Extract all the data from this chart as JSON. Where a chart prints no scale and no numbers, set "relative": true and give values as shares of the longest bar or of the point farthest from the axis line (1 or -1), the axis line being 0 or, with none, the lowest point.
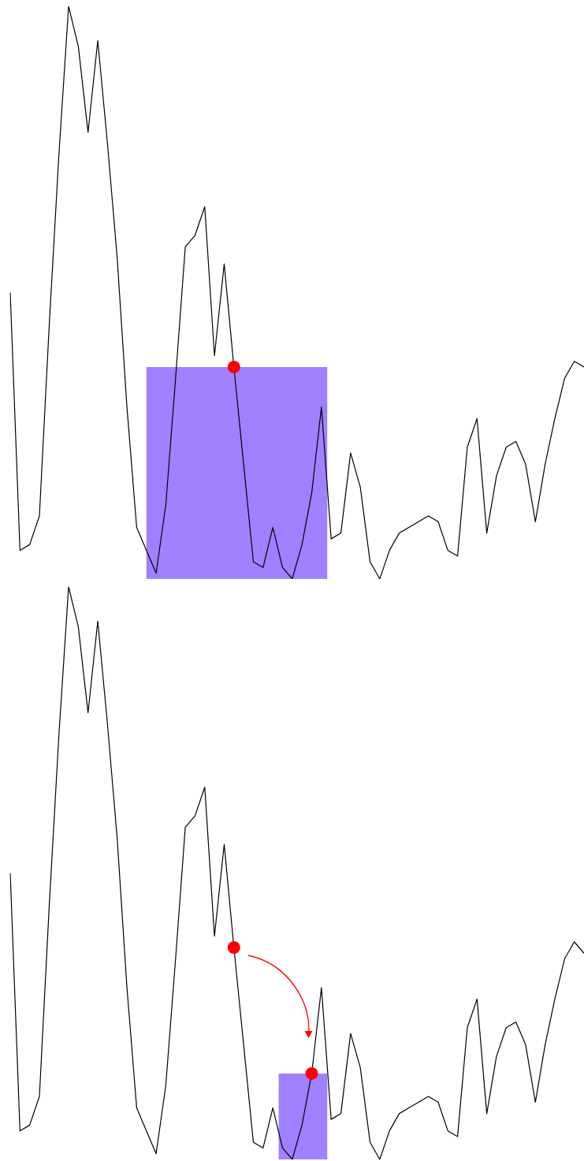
{
  "chart_data": [
    {
      "type": "line",
      "relative": true,
      "legend": false,
      "categories": [
        null,
        null,
        null,
        null,
        null,
        null,
        null,
        null,
        null,
        null,
        null,
        null,
        null,
        null,
        null,
        null,
        null,
        null,
        null,
        null,
        null,
        null,
        null,
        null,
        null,
        null,
        null,
        null,
        null,
        null,
        null,
        null,
        null,
        null,
        null,
        null,
        null,
        null,
        null,
        null,
        null,
        null,
        null,
        null,
        null,
        null,
        null,
        null,
        null,
        null,
        null,
        null,
        null,
        null,
        null,
        null,
        null,
        null,
        null,
        null
      ],
      "series": [
        {
          "color": "#000000",
          "values": [
            0.5,
            0.05,
            0.06,
            0.11,
            0.44,
            0.74,
            1.0,
            0.93,
            0.78,
            0.94,
            0.76,
            0.56,
            0.3,
            0.09,
            0.05,
            0.01,
            0.13,
            0.35,
            0.58,
            0.6,
            0.65,
            0.39,
            0.55,
            0.37,
            0.2,
            0.03,
            0.02,
            0.09,
            0.02,
            0,
            0.06,
            0.15,
            0.3,
            0.07,
            0.08,
            0.22,
            0.16,
            0.03,
            0,
            0.05,
            0.08,
            0.09,
            0.1,
            0.11,
            0.1,
            0.05,
            0.04,
            0.23,
            0.28,
            0.08,
            0.18,
            0.23,
            0.24,
            0.2,
            0.1,
            0.2,
            0.28,
            0.35,
            0.38,
            0.37
          ]
        }
      ]
    },
    {
      "type": "line",
      "relative": true,
      "legend": false,
      "categories": [
        null,
        null,
        null,
        null,
        null,
        null,
        null,
        null,
        null,
        null,
        null,
        null,
        null,
        null,
        null,
        null,
        null,
        null,
        null,
        null,
        null,
        null,
        null,
        null,
        null,
        null,
        null,
        null,
        null,
        null,
        null,
        null,
        null,
        null,
        null,
        null,
        null,
        null,
        null,
        null,
        null,
        null,
        null,
        null,
        null,
        null,
        null,
        null,
        null,
        null,
        null,
        null,
        null,
        null,
        null,
        null,
        null,
        null,
        null,
        null
      ],
      "series": [
        {
          "color": "#000000",
          "values": [
            0.5,
            0.05,
            0.06,
            0.11,
            0.44,
            0.74,
            1.0,
            0.93,
            0.78,
            0.94,
            0.76,
            0.56,
            0.3,
            0.09,
            0.05,
            0.01,
            0.13,
            0.35,
            0.58,
            0.6,
            0.65,
            0.39,
            0.55,
            0.37,
            0.2,
            0.03,
            0.02,
            0.09,
            0.02,
            0,
            0.06,
            0.15,
            0.3,
            0.07,
            0.08,
            0.22,
            0.16,
            0.03,
            0,
            0.05,
            0.08,
            0.09,
            0.1,
            0.11,
            0.1,
            0.05,
            0.04,
            0.23,
            0.28,
            0.08,
            0.18,
            0.23,
            0.24,
            0.2,
            0.1,
            0.2,
            0.28,
            0.35,
            0.38,
            0.36
          ]
        }
      ]
    }
  ]
}
